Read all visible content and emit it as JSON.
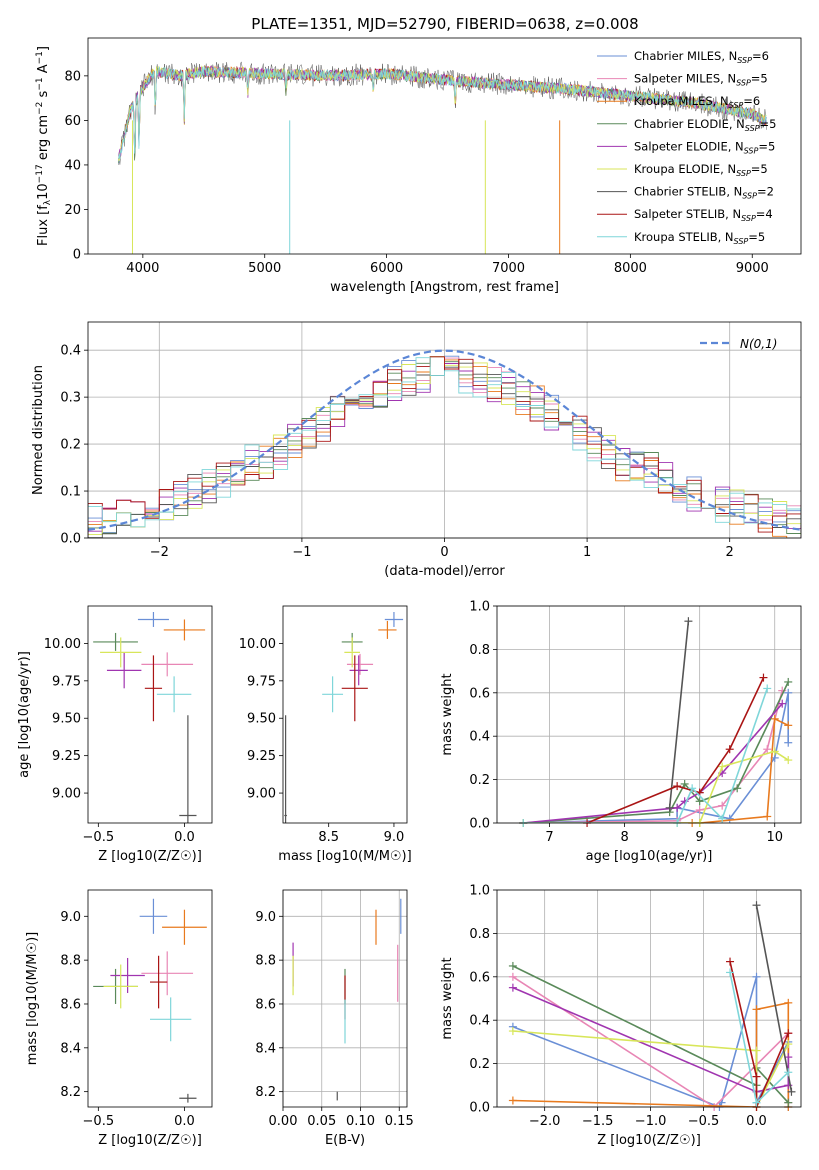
{
  "figure_title": "PLATE=1351, MJD=52790, FIBERID=0638, z=0.008",
  "colors": [
    "#6a8fd6",
    "#e886b5",
    "#e87a1e",
    "#5a8a5a",
    "#a035b0",
    "#d8e65a",
    "#555555",
    "#aa1515",
    "#7fd6d9"
  ],
  "legend_main": "Chabrier MILES, N",
  "chart_data": [
    {
      "id": "spectrum",
      "type": "line",
      "xlabel": "wavelength [Angstrom, rest frame]",
      "ylabel": "Flux [f",
      "ylabel_rest": "10",
      "ylabel_unit": "erg cm",
      "xlim": [
        3550,
        9400
      ],
      "ylim": [
        0,
        97
      ],
      "xticks": [
        4000,
        5000,
        6000,
        7000,
        8000,
        9000
      ],
      "yticks": [
        0,
        20,
        40,
        60,
        80
      ],
      "grid": false,
      "legend_placement": "top-right",
      "series": [
        {
          "name": "Chabrier MILES, N",
          "nssp": "=6"
        },
        {
          "name": "Salpeter MILES, N",
          "nssp": "=5"
        },
        {
          "name": "Kroupa MILES, N",
          "nssp": "=6"
        },
        {
          "name": "Chabrier ELODIE, N",
          "nssp": "=5"
        },
        {
          "name": "Salpeter ELODIE, N",
          "nssp": "=5"
        },
        {
          "name": "Kroupa ELODIE, N",
          "nssp": "=5"
        },
        {
          "name": "Chabrier STELIB, N",
          "nssp": "=2"
        },
        {
          "name": "Salpeter STELIB, N",
          "nssp": "=4"
        },
        {
          "name": "Kroupa STELIB, N",
          "nssp": "=5"
        }
      ],
      "spectrum_shape": {
        "x": [
          3800,
          3900,
          4000,
          4100,
          4300,
          4500,
          5000,
          5500,
          6000,
          6500,
          7000,
          7500,
          8000,
          8500,
          9000,
          9100
        ],
        "y": [
          42,
          65,
          75,
          82,
          80,
          82,
          81,
          80,
          81,
          78,
          76,
          74,
          71,
          68,
          63,
          60
        ]
      }
    },
    {
      "id": "residual_hist",
      "type": "histogram",
      "xlabel": "(data-model)/error",
      "ylabel": "Normed distribution",
      "xlim": [
        -2.5,
        2.5
      ],
      "ylim": [
        0,
        0.46
      ],
      "xticks": [
        -2,
        -1,
        0,
        1,
        2
      ],
      "yticks": [
        0.0,
        0.1,
        0.2,
        0.3,
        0.4
      ],
      "grid": true,
      "legend_placement": "top-right",
      "legend_label": "N(0,1)",
      "bin_width": 0.1,
      "reference_curve": "gaussian mean 0 sigma 1"
    },
    {
      "id": "age_vs_Z",
      "type": "errorbar",
      "xlabel": "Z [log10(Z/Z☉)]",
      "ylabel": "age  [log10(age/yr)]",
      "xlim": [
        -0.56,
        0.16
      ],
      "ylim": [
        8.8,
        10.25
      ],
      "xticks": [
        -0.5,
        0.0
      ],
      "yticks": [
        9.0,
        9.25,
        9.5,
        9.75,
        10.0
      ],
      "grid": false,
      "points": [
        {
          "x": -0.18,
          "y": 10.16,
          "xe": 0.09,
          "ye": 0.05
        },
        {
          "x": -0.1,
          "y": 9.86,
          "xe": 0.15,
          "ye": 0.08
        },
        {
          "x": 0.0,
          "y": 10.09,
          "xe": 0.12,
          "ye": 0.07
        },
        {
          "x": -0.4,
          "y": 10.01,
          "xe": 0.13,
          "ye": 0.06
        },
        {
          "x": -0.35,
          "y": 9.82,
          "xe": 0.1,
          "ye": 0.12
        },
        {
          "x": -0.37,
          "y": 9.94,
          "xe": 0.12,
          "ye": 0.1
        },
        {
          "x": 0.02,
          "y": 8.85,
          "xe": 0.05,
          "ye": 0.67
        },
        {
          "x": -0.18,
          "y": 9.7,
          "xe": 0.05,
          "ye": 0.22
        },
        {
          "x": -0.06,
          "y": 9.66,
          "xe": 0.1,
          "ye": 0.12
        }
      ]
    },
    {
      "id": "age_vs_mass",
      "type": "errorbar",
      "xlabel": "mass [log10(M/M☉)]",
      "xlim": [
        8.15,
        9.1
      ],
      "ylim": [
        8.8,
        10.25
      ],
      "xticks": [
        8.5,
        9.0
      ],
      "yticks": [
        9.0,
        9.25,
        9.5,
        9.75,
        10.0
      ],
      "grid": false,
      "points": [
        {
          "x": 9.0,
          "y": 10.16,
          "xe": 0.07,
          "ye": 0.05
        },
        {
          "x": 8.74,
          "y": 9.86,
          "xe": 0.1,
          "ye": 0.07
        },
        {
          "x": 8.95,
          "y": 10.09,
          "xe": 0.07,
          "ye": 0.06
        },
        {
          "x": 8.68,
          "y": 10.01,
          "xe": 0.08,
          "ye": 0.06
        },
        {
          "x": 8.73,
          "y": 9.82,
          "xe": 0.07,
          "ye": 0.1
        },
        {
          "x": 8.68,
          "y": 9.94,
          "xe": 0.06,
          "ye": 0.1
        },
        {
          "x": 8.17,
          "y": 8.85,
          "xe": 0.01,
          "ye": 0.67
        },
        {
          "x": 8.7,
          "y": 9.7,
          "xe": 0.1,
          "ye": 0.22
        },
        {
          "x": 8.53,
          "y": 9.66,
          "xe": 0.08,
          "ye": 0.12
        }
      ]
    },
    {
      "id": "weight_vs_age",
      "type": "line",
      "xlabel": "age  [log10(age/yr)]",
      "ylabel": "mass weight",
      "xlim": [
        6.3,
        10.35
      ],
      "ylim": [
        0,
        1.0
      ],
      "xticks": [
        7,
        8,
        9,
        10
      ],
      "yticks": [
        0.0,
        0.2,
        0.4,
        0.6,
        0.8,
        1.0
      ],
      "grid": true,
      "series": [
        {
          "x": [
            6.65,
            8.7,
            8.7,
            9.4,
            10.0,
            10.18,
            10.18
          ],
          "y": [
            0.0,
            0.02,
            0.07,
            0.02,
            0.3,
            0.6,
            0.37
          ]
        },
        {
          "x": [
            6.65,
            8.7,
            9.0,
            9.3,
            9.9,
            10.1
          ],
          "y": [
            0.0,
            0.01,
            0.06,
            0.08,
            0.34,
            0.61
          ]
        },
        {
          "x": [
            6.65,
            8.9,
            9.0,
            9.9,
            10.0,
            10.18
          ],
          "y": [
            0.0,
            0.0,
            0.0,
            0.03,
            0.48,
            0.45
          ]
        },
        {
          "x": [
            6.65,
            8.6,
            8.8,
            9.0,
            9.5,
            10.18
          ],
          "y": [
            0.0,
            0.05,
            0.18,
            0.1,
            0.16,
            0.65
          ]
        },
        {
          "x": [
            6.65,
            8.7,
            8.8,
            9.0,
            9.3,
            10.1
          ],
          "y": [
            0.0,
            0.07,
            0.1,
            0.14,
            0.23,
            0.55
          ]
        },
        {
          "x": [
            6.65,
            8.7,
            9.0,
            9.3,
            10.0,
            10.18
          ],
          "y": [
            0.0,
            0.0,
            0.0,
            0.26,
            0.33,
            0.29
          ]
        },
        {
          "x": [
            8.6,
            8.85
          ],
          "y": [
            0.07,
            0.93
          ]
        },
        {
          "x": [
            7.5,
            8.7,
            9.0,
            9.4,
            9.85
          ],
          "y": [
            0.0,
            0.17,
            0.14,
            0.34,
            0.67
          ]
        },
        {
          "x": [
            6.65,
            8.7,
            8.9,
            9.3,
            9.9
          ],
          "y": [
            0.0,
            0.0,
            0.16,
            0.02,
            0.62
          ]
        }
      ]
    },
    {
      "id": "mass_vs_Z",
      "type": "errorbar",
      "xlabel": "Z [log10(Z/Z☉)]",
      "ylabel": "mass [log10(M/M☉)]",
      "xlim": [
        -0.56,
        0.16
      ],
      "ylim": [
        8.13,
        9.12
      ],
      "xticks": [
        -0.5,
        0.0
      ],
      "yticks": [
        8.2,
        8.4,
        8.6,
        8.8,
        9.0
      ],
      "grid": false,
      "points": [
        {
          "x": -0.18,
          "y": 9.0,
          "xe": 0.08,
          "ye": 0.08
        },
        {
          "x": -0.1,
          "y": 8.74,
          "xe": 0.15,
          "ye": 0.1
        },
        {
          "x": 0.0,
          "y": 8.95,
          "xe": 0.13,
          "ye": 0.08
        },
        {
          "x": -0.4,
          "y": 8.68,
          "xe": 0.13,
          "ye": 0.08
        },
        {
          "x": -0.33,
          "y": 8.73,
          "xe": 0.1,
          "ye": 0.08
        },
        {
          "x": -0.37,
          "y": 8.68,
          "xe": 0.1,
          "ye": 0.1
        },
        {
          "x": 0.02,
          "y": 8.17,
          "xe": 0.05,
          "ye": 0.02
        },
        {
          "x": -0.15,
          "y": 8.7,
          "xe": 0.05,
          "ye": 0.12
        },
        {
          "x": -0.08,
          "y": 8.53,
          "xe": 0.12,
          "ye": 0.1
        }
      ]
    },
    {
      "id": "mass_vs_ebv",
      "type": "errorbar",
      "xlabel": "E(B-V)",
      "xlim": [
        0.0,
        0.16
      ],
      "ylim": [
        8.13,
        9.12
      ],
      "xticks": [
        0.0,
        0.05,
        0.1,
        0.15
      ],
      "yticks": [
        8.2,
        8.4,
        8.6,
        8.8,
        9.0
      ],
      "grid": true,
      "points": [
        {
          "x": 0.152,
          "y": 9.0,
          "xe": 0.0,
          "ye": 0.08
        },
        {
          "x": 0.148,
          "y": 8.74,
          "xe": 0.0,
          "ye": 0.13
        },
        {
          "x": 0.12,
          "y": 8.95,
          "xe": 0.0,
          "ye": 0.08
        },
        {
          "x": 0.08,
          "y": 8.68,
          "xe": 0.0,
          "ye": 0.08
        },
        {
          "x": 0.013,
          "y": 8.78,
          "xe": 0.0,
          "ye": 0.1
        },
        {
          "x": 0.013,
          "y": 8.73,
          "xe": 0.0,
          "ye": 0.09
        },
        {
          "x": 0.07,
          "y": 8.18,
          "xe": 0.0,
          "ye": 0.02
        },
        {
          "x": 0.08,
          "y": 8.63,
          "xe": 0.0,
          "ye": 0.1
        },
        {
          "x": 0.08,
          "y": 8.52,
          "xe": 0.0,
          "ye": 0.1
        }
      ]
    },
    {
      "id": "weight_vs_Z",
      "type": "line",
      "xlabel": "Z [log10(Z/Z☉)]",
      "ylabel": "mass weight",
      "xlim": [
        -2.45,
        0.42
      ],
      "ylim": [
        0,
        1.0
      ],
      "xticks": [
        -2.0,
        -1.5,
        -1.0,
        -0.5,
        0.0
      ],
      "yticks": [
        0.0,
        0.2,
        0.4,
        0.6,
        0.8,
        1.0
      ],
      "grid": true,
      "series": [
        {
          "x": [
            -2.3,
            -0.35,
            -0.33,
            0.0,
            0.0,
            0.3,
            0.3
          ],
          "y": [
            0.37,
            0.0,
            0.02,
            0.6,
            0.02,
            0.3,
            0.0
          ]
        },
        {
          "x": [
            -2.3,
            -0.4,
            0.3,
            0.3
          ],
          "y": [
            0.6,
            0.0,
            0.34,
            0.02
          ]
        },
        {
          "x": [
            -2.3,
            0.0,
            0.0,
            0.3,
            0.3
          ],
          "y": [
            0.03,
            0.0,
            0.45,
            0.48,
            0.0
          ]
        },
        {
          "x": [
            -2.3,
            0.0,
            0.0,
            0.3
          ],
          "y": [
            0.65,
            0.1,
            0.18,
            0.02
          ]
        },
        {
          "x": [
            -2.3,
            0.0,
            0.3,
            0.3
          ],
          "y": [
            0.55,
            0.07,
            0.1,
            0.23
          ]
        },
        {
          "x": [
            -2.3,
            0.0,
            0.0,
            0.3
          ],
          "y": [
            0.35,
            0.26,
            0.0,
            0.29
          ]
        },
        {
          "x": [
            0.0,
            0.33
          ],
          "y": [
            0.93,
            0.07
          ]
        },
        {
          "x": [
            -0.25,
            0.0,
            0.0,
            0.3
          ],
          "y": [
            0.67,
            0.14,
            0.0,
            0.34
          ]
        },
        {
          "x": [
            -0.25,
            0.0,
            0.3
          ],
          "y": [
            0.62,
            0.02,
            0.16
          ]
        }
      ]
    }
  ]
}
